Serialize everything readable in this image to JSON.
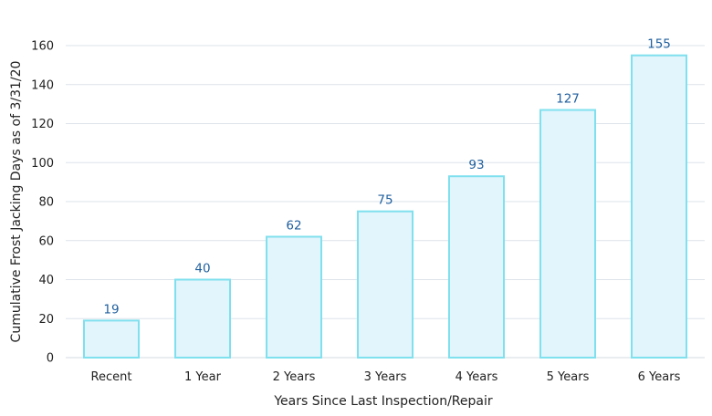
{
  "chart_data": {
    "type": "bar",
    "title": "",
    "xlabel": "Years Since Last Inspection/Repair",
    "ylabel": "Cumulative Frost Jacking Days as of  3/31/20",
    "categories": [
      "Recent",
      "1 Year",
      "2 Years",
      "3 Years",
      "4 Years",
      "5 Years",
      "6 Years"
    ],
    "values": [
      19,
      40,
      62,
      75,
      93,
      127,
      155
    ],
    "ylim": [
      0,
      160
    ],
    "yticks": [
      0,
      20,
      40,
      60,
      80,
      100,
      120,
      140,
      160
    ],
    "grid": true,
    "legend": "none",
    "colors": {
      "bar_fill": "#e2f4fc",
      "bar_edge": "#7fe0ee",
      "data_label": "#1f5f9e",
      "gridline": "#dde3ea"
    }
  }
}
